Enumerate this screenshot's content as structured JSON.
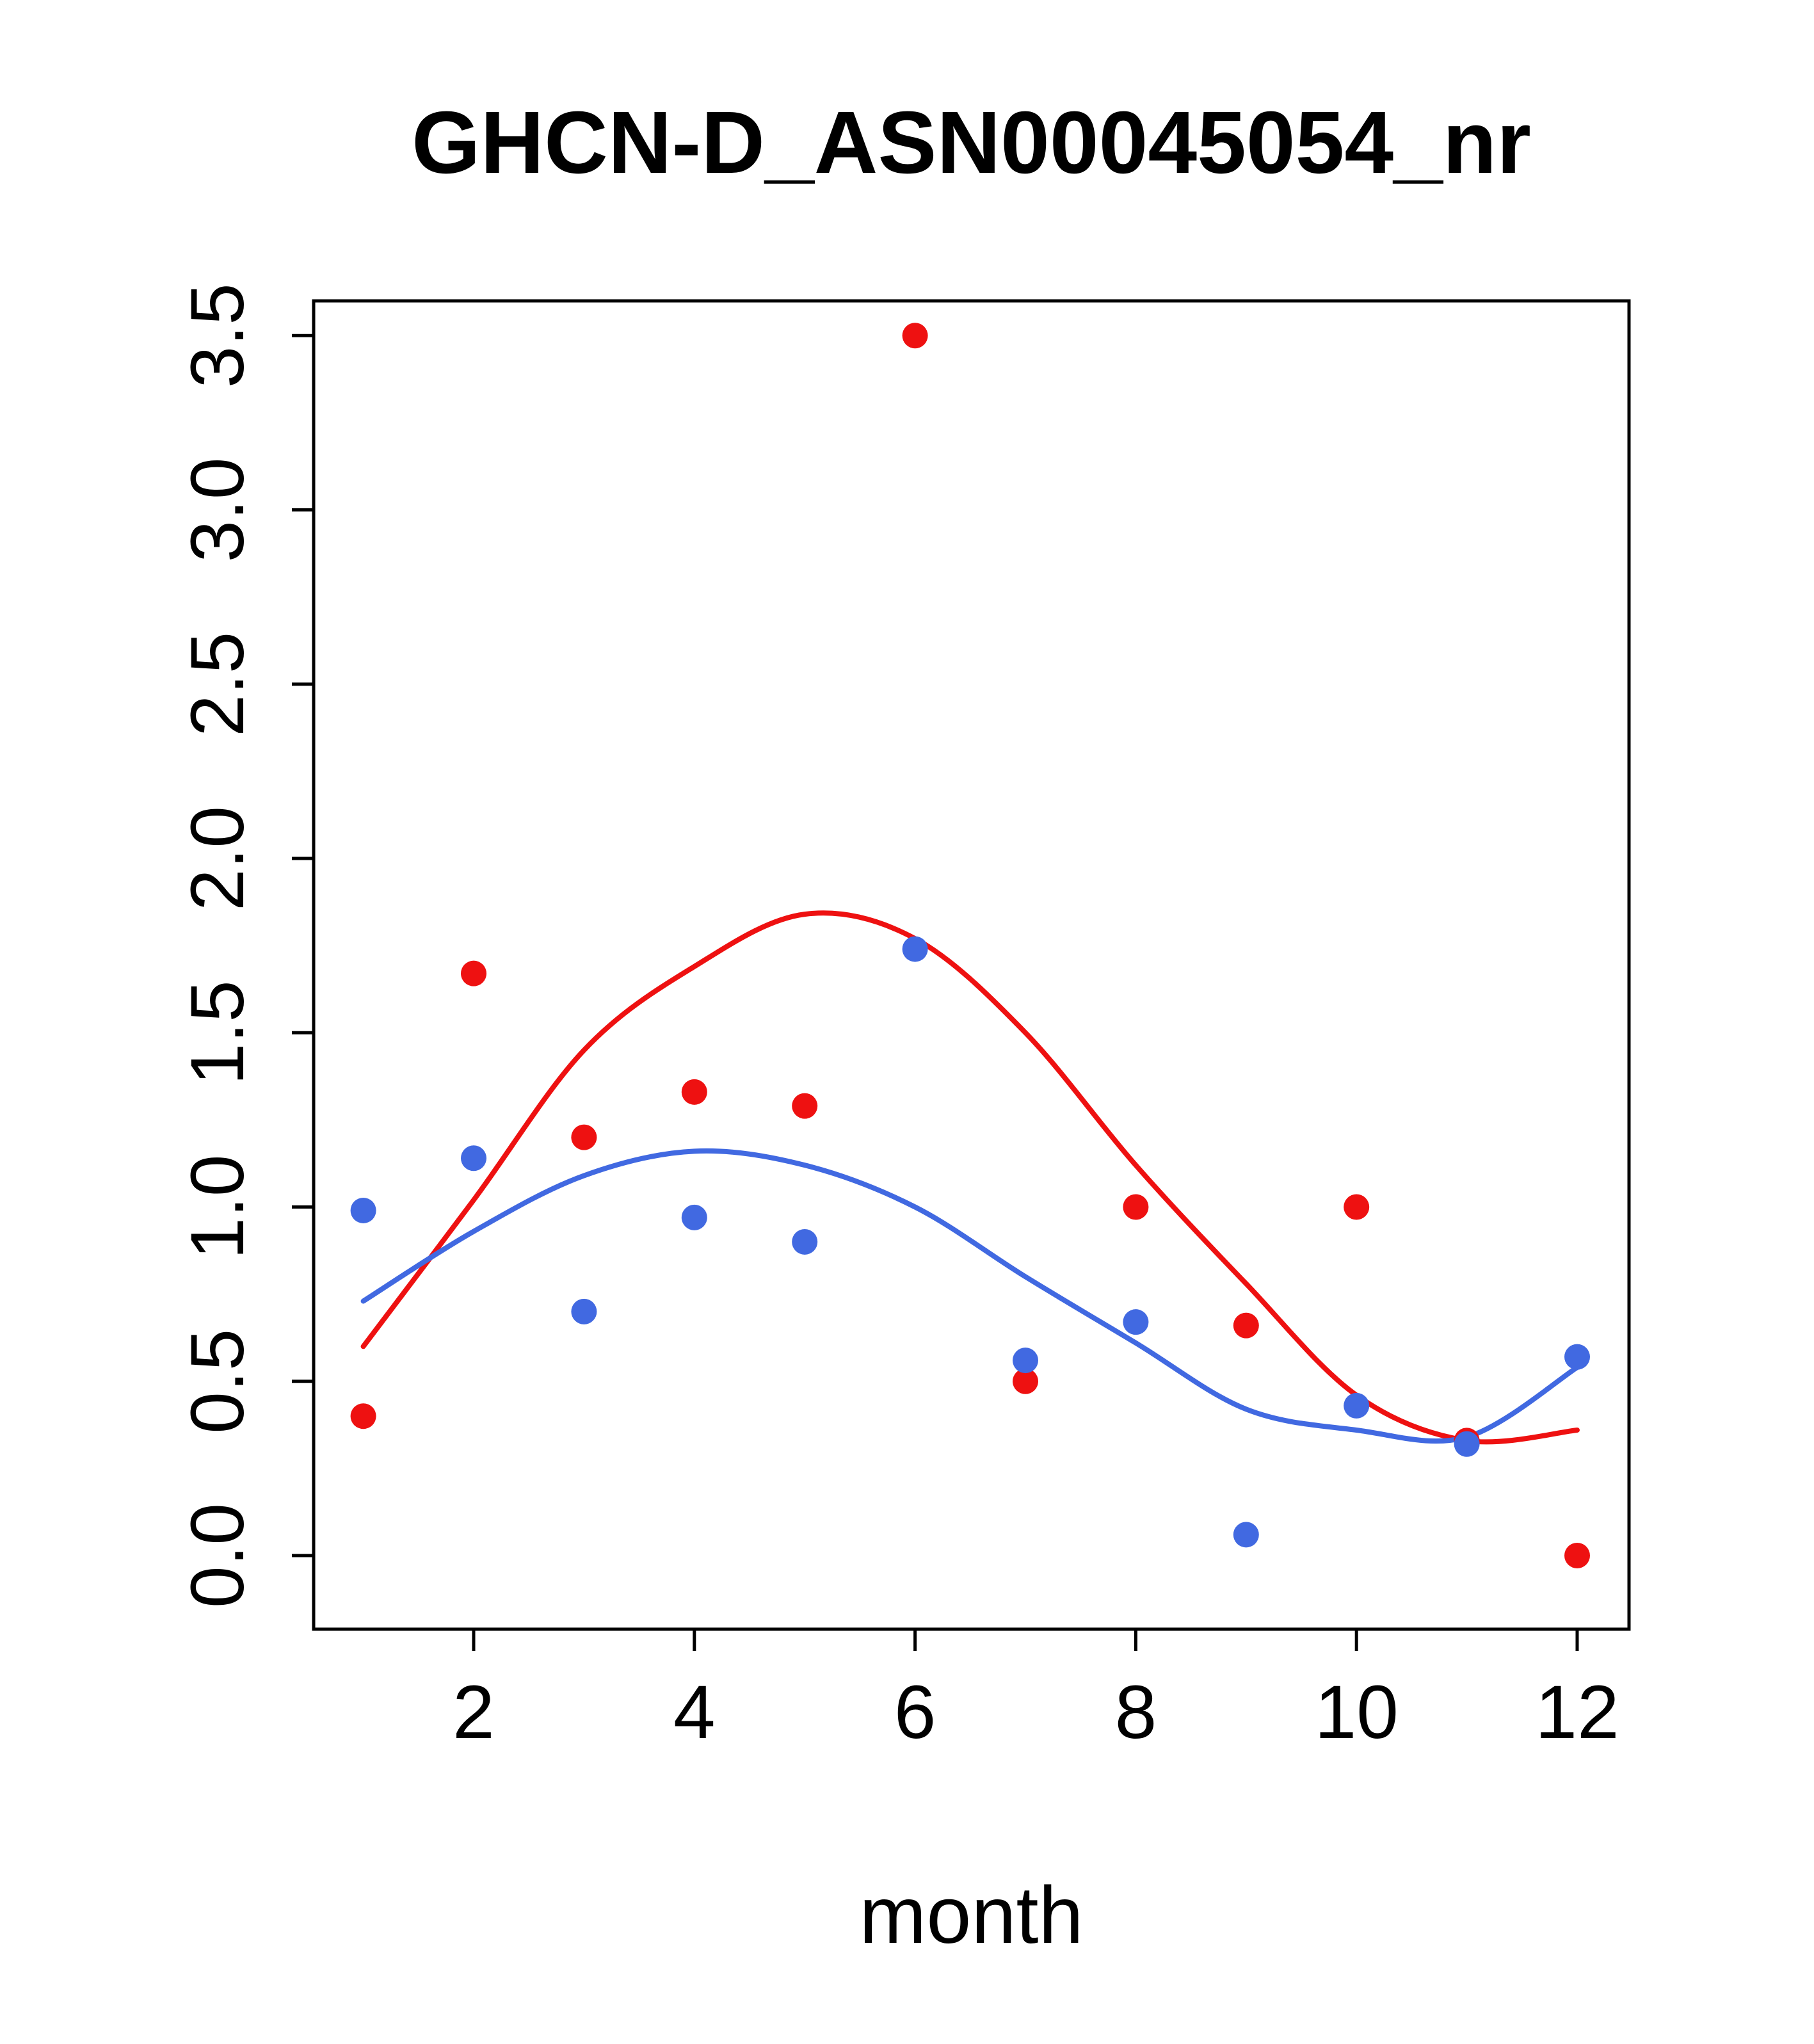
{
  "title": "GHCN-D_ASN00045054_nr",
  "chart_data": {
    "type": "scatter",
    "title": "GHCN-D_ASN00045054_nr",
    "xlabel": "month",
    "ylabel": "",
    "x": [
      1,
      2,
      3,
      4,
      5,
      6,
      7,
      8,
      9,
      10,
      11,
      12
    ],
    "xlim": [
      1,
      12
    ],
    "ylim": [
      0,
      3.5
    ],
    "x_ticks": [
      2,
      4,
      6,
      8,
      10,
      12
    ],
    "y_ticks": [
      0.0,
      0.5,
      1.0,
      1.5,
      2.0,
      2.5,
      3.0,
      3.5
    ],
    "grid": false,
    "legend": "none",
    "colors": {
      "red": "#ee1111",
      "blue": "#4169e1",
      "axis": "#000000"
    },
    "series": [
      {
        "name": "red-points",
        "kind": "points",
        "color": "#ee1111",
        "values": [
          0.4,
          1.67,
          1.2,
          1.33,
          1.29,
          3.5,
          0.5,
          1.0,
          0.66,
          1.0,
          0.33,
          0.0
        ]
      },
      {
        "name": "blue-points",
        "kind": "points",
        "color": "#4169e1",
        "values": [
          0.99,
          1.14,
          0.7,
          0.97,
          0.9,
          1.74,
          0.56,
          0.67,
          0.06,
          0.43,
          0.32,
          0.57
        ]
      },
      {
        "name": "red-smooth-line",
        "kind": "line",
        "color": "#ee1111",
        "values": [
          0.6,
          1.02,
          1.45,
          1.69,
          1.84,
          1.77,
          1.5,
          1.12,
          0.78,
          0.46,
          0.33,
          0.36
        ]
      },
      {
        "name": "blue-smooth-line",
        "kind": "line",
        "color": "#4169e1",
        "values": [
          0.73,
          0.93,
          1.09,
          1.16,
          1.12,
          1.0,
          0.8,
          0.61,
          0.42,
          0.36,
          0.34,
          0.54
        ]
      }
    ]
  }
}
